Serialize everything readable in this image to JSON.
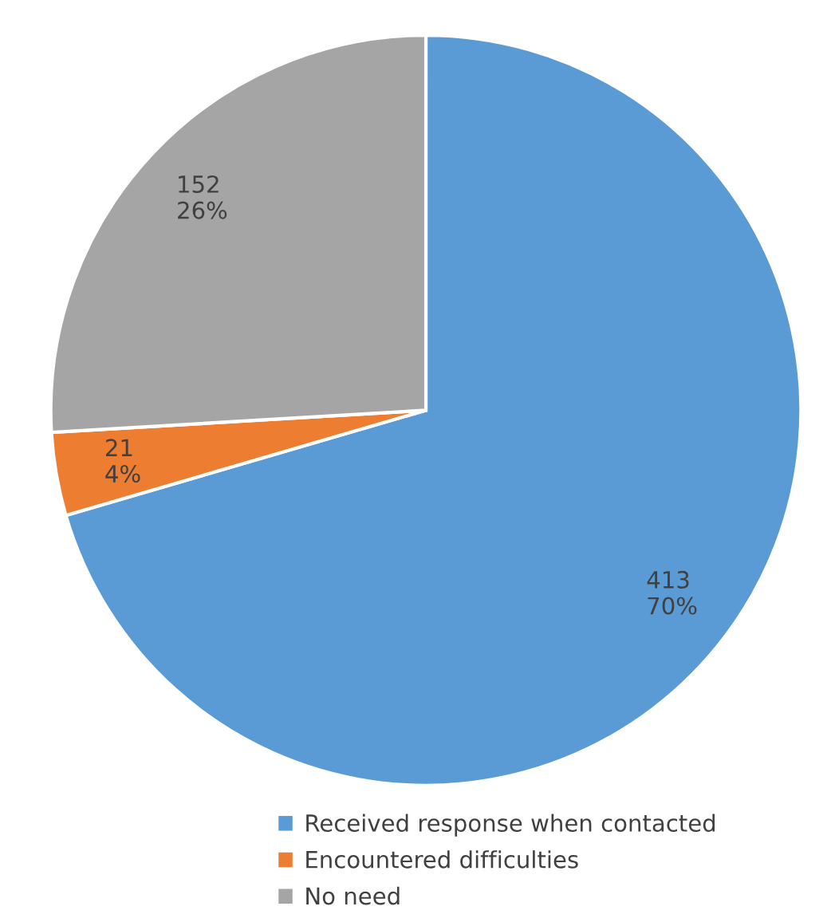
{
  "chart_data": {
    "type": "pie",
    "categories": [
      "Received response when contacted",
      "Encountered difficulties",
      "No need"
    ],
    "values": [
      413,
      21,
      152
    ],
    "colors": [
      "#5b9bd5",
      "#ed7d31",
      "#a5a5a5"
    ],
    "value_labels": [
      "413\n70%",
      "21\n4%",
      "152\n26%"
    ],
    "legend": "bottom"
  }
}
